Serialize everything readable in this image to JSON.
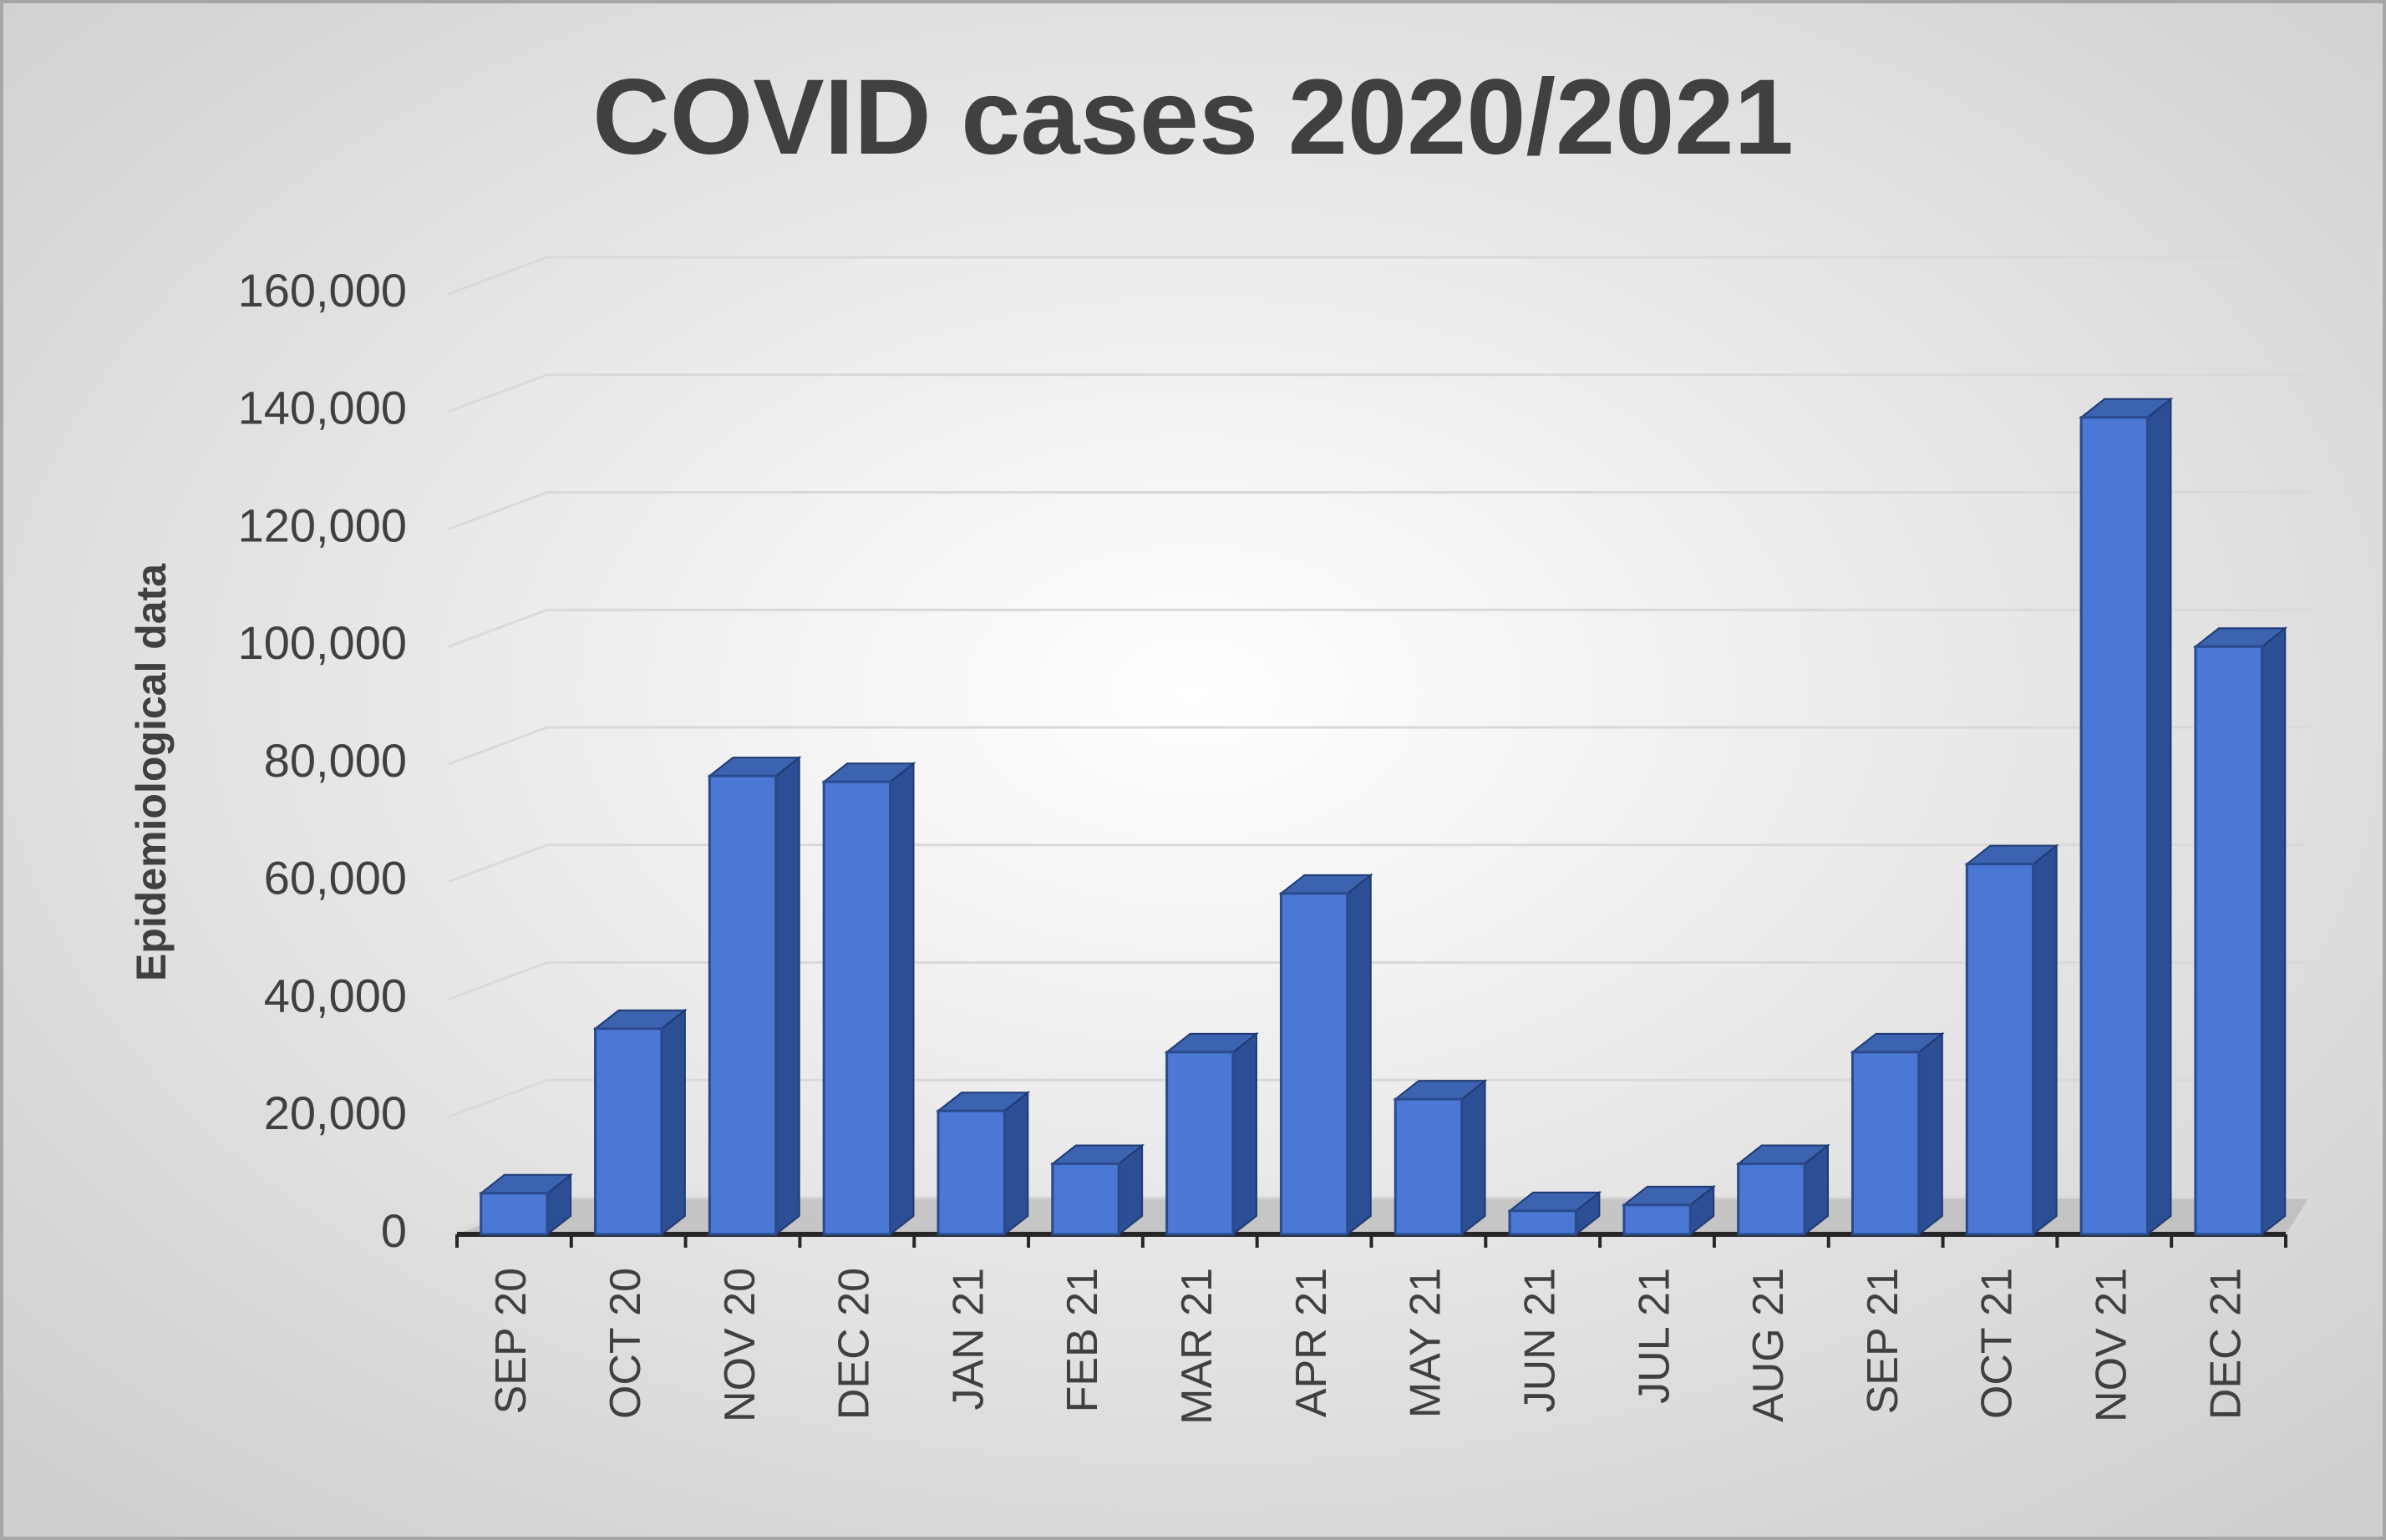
{
  "chart_data": {
    "type": "bar",
    "title": "COVID cases 2020/2021",
    "y_label": "Epidemiological data",
    "categories": [
      "SEP 20",
      "OCT 20",
      "NOV 20",
      "DEC 20",
      "JAN 21",
      "FEB 21",
      "MAR 21",
      "APR 21",
      "MAY 21",
      "JUN 21",
      "JUL 21",
      "AUG 21",
      "SEP 21",
      "OCT 21",
      "NOV 21",
      "DEC 21"
    ],
    "values": [
      7000,
      35000,
      78000,
      77000,
      21000,
      12000,
      31000,
      58000,
      23000,
      4000,
      5000,
      12000,
      31000,
      63000,
      139000,
      100000
    ],
    "color": "#4a78d4",
    "ylim": [
      0,
      160000
    ],
    "yticks": [
      0,
      {
        "value": 20000,
        "label": "20,000"
      },
      {
        "value": 40000,
        "label": "40,000"
      },
      {
        "value": 60000,
        "label": "60,000"
      },
      {
        "value": 80000,
        "label": "80,000"
      },
      {
        "value": 100000,
        "label": "100,000"
      },
      {
        "value": 120000,
        "label": "120,000"
      },
      {
        "value": 140000,
        "label": "140,000"
      },
      {
        "value": 160000,
        "label": "160,000"
      }
    ],
    "grid": true
  }
}
